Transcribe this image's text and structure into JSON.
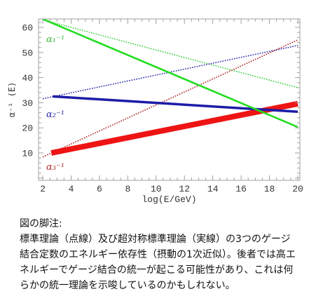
{
  "chart_data": {
    "type": "line",
    "xlabel": "log(E/GeV)",
    "ylabel": "α⁻¹ (E)",
    "xlim": [
      1.7,
      20.15
    ],
    "ylim": [
      -0.9,
      63.35
    ],
    "xticks": [
      "2",
      "4",
      "6",
      "8",
      "10",
      "12",
      "14",
      "16",
      "18",
      "20"
    ],
    "yticks": [
      "10",
      "20",
      "30",
      "40",
      "50",
      "60"
    ],
    "grid": false,
    "line_labels": [
      {
        "text": "α₁⁻¹",
        "color": "#44bb44"
      },
      {
        "text": "α₂⁻¹",
        "color": "#2c2cae"
      },
      {
        "text": "α₃⁻¹",
        "color": "#b03030"
      }
    ],
    "series": [
      {
        "style": "dotted",
        "color": "#3ccc3c",
        "x": [
          2,
          20
        ],
        "y": [
          63.0,
          36.0
        ]
      },
      {
        "style": "dotted",
        "color": "#2a2aaa",
        "x": [
          2,
          20
        ],
        "y": [
          31.6,
          52.8
        ]
      },
      {
        "style": "dotted",
        "color": "#b02525",
        "x": [
          2,
          20
        ],
        "y": [
          8.4,
          55.0
        ]
      },
      {
        "style": "solid",
        "color": "#ee1414",
        "x": [
          2.6,
          20
        ],
        "y": [
          10.0,
          29.6
        ]
      },
      {
        "style": "solid",
        "color": "#1c1ca8",
        "x": [
          2.7,
          20
        ],
        "y": [
          32.5,
          26.4
        ]
      },
      {
        "style": "solid",
        "color": "#22dd22",
        "x": [
          2,
          20
        ],
        "y": [
          63.3,
          20.3
        ]
      }
    ]
  },
  "caption": {
    "heading": "図の脚注:",
    "lines": [
      "標準理論（点線）及び超対称標準理論（実線）の3つのゲージ",
      "結合定数のエネルギー依存性（摂動の1次近似）。後者では高エ",
      "ネルギーでゲージ結合の統一が起こる可能性があり、これは何",
      "らかの統一理論を示唆しているのかもしれない。"
    ]
  }
}
